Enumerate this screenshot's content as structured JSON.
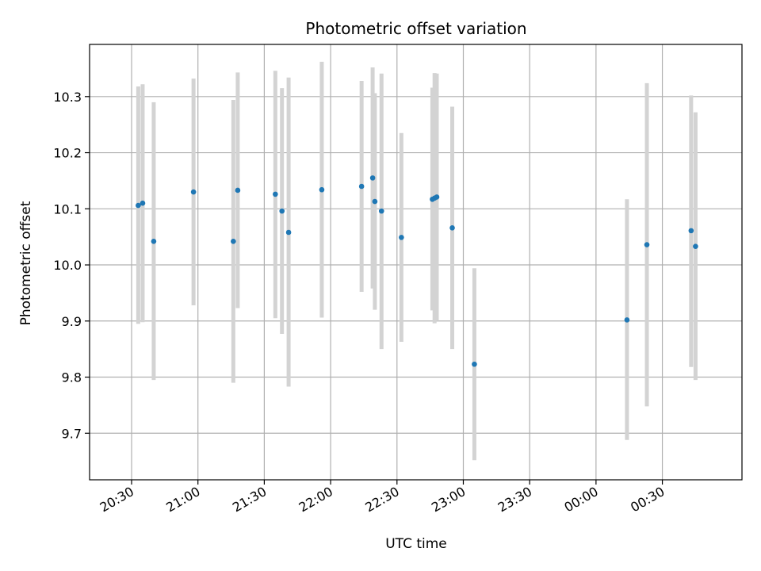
{
  "chart_data": {
    "type": "scatter",
    "title": "Photometric offset variation",
    "xlabel": "UTC time",
    "ylabel": "Photometric offset",
    "x_unit": "time (HH:MM UTC, crossing midnight)",
    "xlim": [
      "20:11",
      "01:06"
    ],
    "ylim": [
      9.617,
      10.393
    ],
    "x_ticks": [
      "20:30",
      "21:00",
      "21:30",
      "22:00",
      "22:30",
      "23:00",
      "23:30",
      "00:00",
      "00:30"
    ],
    "y_ticks": [
      "9.7",
      "9.8",
      "9.9",
      "10.0",
      "10.1",
      "10.2",
      "10.3"
    ],
    "grid": true,
    "colors": {
      "point": "#1f77b4",
      "errorbar": "#d3d3d3",
      "grid": "#b0b0b0"
    },
    "points": [
      {
        "t": "20:33",
        "y": 10.106,
        "err_low": 9.895,
        "err_high": 10.318
      },
      {
        "t": "20:35",
        "y": 10.11,
        "err_low": 9.898,
        "err_high": 10.322
      },
      {
        "t": "20:40",
        "y": 10.042,
        "err_low": 9.795,
        "err_high": 10.29
      },
      {
        "t": "20:58",
        "y": 10.13,
        "err_low": 9.928,
        "err_high": 10.332
      },
      {
        "t": "21:16",
        "y": 10.042,
        "err_low": 9.79,
        "err_high": 10.294
      },
      {
        "t": "21:18",
        "y": 10.133,
        "err_low": 9.923,
        "err_high": 10.343
      },
      {
        "t": "21:35",
        "y": 10.126,
        "err_low": 9.905,
        "err_high": 10.346
      },
      {
        "t": "21:38",
        "y": 10.096,
        "err_low": 9.877,
        "err_high": 10.315
      },
      {
        "t": "21:41",
        "y": 10.058,
        "err_low": 9.783,
        "err_high": 10.334
      },
      {
        "t": "21:56",
        "y": 10.134,
        "err_low": 9.906,
        "err_high": 10.362
      },
      {
        "t": "22:14",
        "y": 10.14,
        "err_low": 9.952,
        "err_high": 10.328
      },
      {
        "t": "22:19",
        "y": 10.155,
        "err_low": 9.958,
        "err_high": 10.352
      },
      {
        "t": "22:20",
        "y": 10.113,
        "err_low": 9.92,
        "err_high": 10.306
      },
      {
        "t": "22:23",
        "y": 10.096,
        "err_low": 9.85,
        "err_high": 10.341
      },
      {
        "t": "22:32",
        "y": 10.049,
        "err_low": 9.863,
        "err_high": 10.235
      },
      {
        "t": "22:46",
        "y": 10.117,
        "err_low": 9.919,
        "err_high": 10.316
      },
      {
        "t": "22:47",
        "y": 10.119,
        "err_low": 9.896,
        "err_high": 10.342
      },
      {
        "t": "22:48",
        "y": 10.121,
        "err_low": 9.9,
        "err_high": 10.341
      },
      {
        "t": "22:55",
        "y": 10.066,
        "err_low": 9.85,
        "err_high": 10.282
      },
      {
        "t": "23:05",
        "y": 9.823,
        "err_low": 9.652,
        "err_high": 9.994
      },
      {
        "t": "00:14",
        "y": 9.902,
        "err_low": 9.688,
        "err_high": 10.117
      },
      {
        "t": "00:23",
        "y": 10.036,
        "err_low": 9.748,
        "err_high": 10.324
      },
      {
        "t": "00:43",
        "y": 10.061,
        "err_low": 9.818,
        "err_high": 10.302
      },
      {
        "t": "00:45",
        "y": 10.033,
        "err_low": 9.795,
        "err_high": 10.272
      }
    ]
  }
}
